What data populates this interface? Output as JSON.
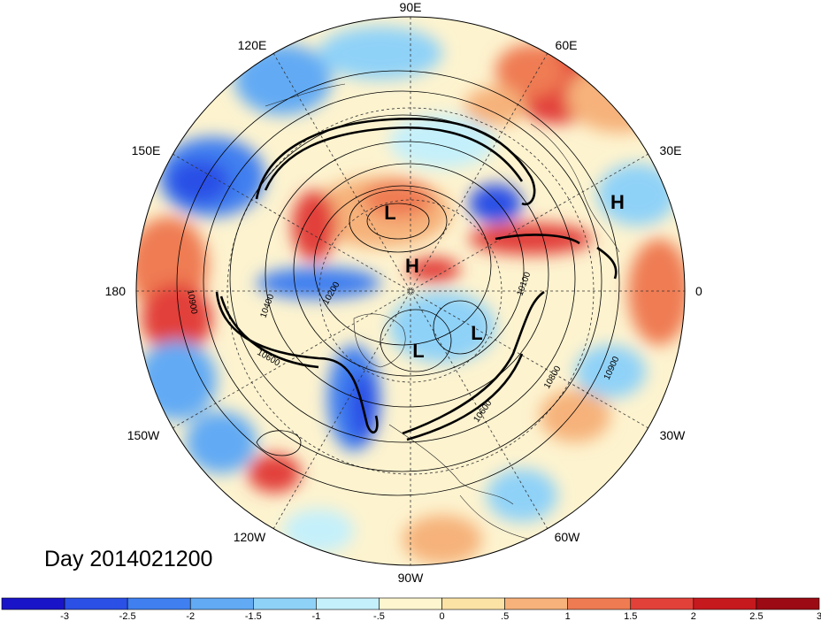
{
  "title": "Day 2014021200",
  "longitude_labels": {
    "top": "90E",
    "top_left": "120E",
    "top_right": "60E",
    "upper_left": "150E",
    "upper_right": "30E",
    "left": "180",
    "right": "0",
    "lower_left": "150W",
    "lower_right": "30W",
    "bottom_left": "120W",
    "bottom_right": "60W",
    "bottom": "90W"
  },
  "pressure_centers": {
    "low_siberia": "L",
    "high_pole": "H",
    "high_europe": "H",
    "low_canada_west": "L",
    "low_canada_east": "L"
  },
  "contour_labels": {
    "c10900_left": "10900",
    "c10400": "10400",
    "c10200": "10200",
    "c10100": "10100",
    "c10600_lower": "10600",
    "c10800_right": "10800",
    "c10900_right": "10900",
    "c10600_right": "10600"
  },
  "colorbar": {
    "colors": [
      "#1a14c8",
      "#2a50e6",
      "#3f7ff0",
      "#62aaf4",
      "#8fd2f8",
      "#c4f0fb",
      "#fdf6cf",
      "#fbe3a6",
      "#f6b27a",
      "#ef7b52",
      "#e2413a",
      "#c6191e",
      "#9c0a14"
    ],
    "ticks": [
      "-3",
      "-2.5",
      "-2",
      "-1.5",
      "-1",
      "-.5",
      "0",
      ".5",
      "1",
      "1.5",
      "2",
      "2.5",
      "3"
    ]
  },
  "colors": {
    "ocean_base": "#fbe3a6",
    "contour": "#000000"
  }
}
